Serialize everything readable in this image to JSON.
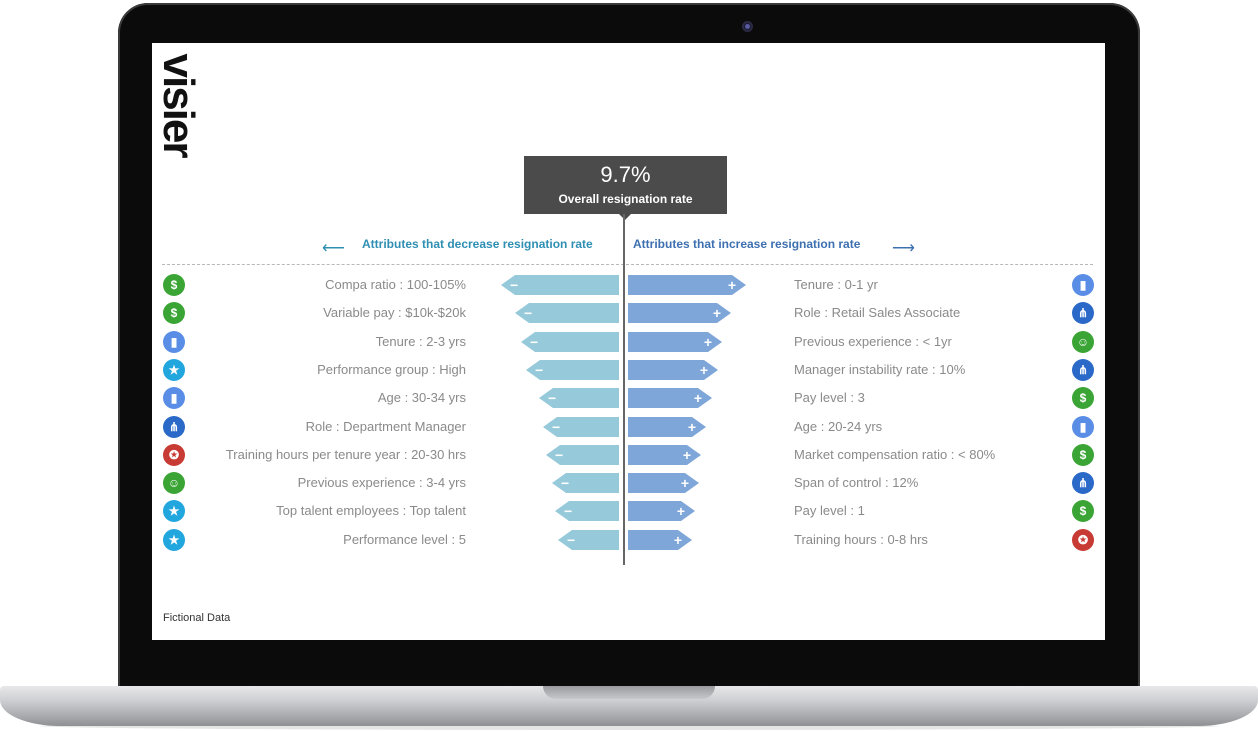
{
  "brand": {
    "logo_text": "visier",
    "registered_mark": "®"
  },
  "summary": {
    "rate_value": "9.7%",
    "rate_label": "Overall resignation rate"
  },
  "headers": {
    "decrease": "Attributes that decrease resignation rate",
    "increase": "Attributes that increase resignation rate",
    "arrow_left": "⟵",
    "arrow_right": "⟶"
  },
  "decrease_rows": [
    {
      "label": "Compa ratio : 100-105%",
      "icon": "dollar-icon",
      "icon_glyph": "$",
      "relative_magnitude": 1.0
    },
    {
      "label": "Variable pay : $10k-$20k",
      "icon": "dollar-icon",
      "icon_glyph": "$",
      "relative_magnitude": 0.88
    },
    {
      "label": "Tenure : 2-3 yrs",
      "icon": "chart-icon",
      "icon_glyph": "▮",
      "relative_magnitude": 0.83
    },
    {
      "label": "Performance group : High",
      "icon": "star-icon",
      "icon_glyph": "★",
      "relative_magnitude": 0.79
    },
    {
      "label": "Age : 30-34 yrs",
      "icon": "chart-icon",
      "icon_glyph": "▮",
      "relative_magnitude": 0.68
    },
    {
      "label": "Role : Department Manager",
      "icon": "network-icon",
      "icon_glyph": "⋔",
      "relative_magnitude": 0.64
    },
    {
      "label": "Training hours per tenure year : 20-30 hrs",
      "icon": "ribbon-icon",
      "icon_glyph": "✪",
      "relative_magnitude": 0.62
    },
    {
      "label": "Previous experience : 3-4 yrs",
      "icon": "person-icon",
      "icon_glyph": "☺",
      "relative_magnitude": 0.57
    },
    {
      "label": "Top talent employees : Top talent",
      "icon": "star-icon",
      "icon_glyph": "★",
      "relative_magnitude": 0.54
    },
    {
      "label": "Performance level : 5",
      "icon": "star-icon",
      "icon_glyph": "★",
      "relative_magnitude": 0.52
    }
  ],
  "increase_rows": [
    {
      "label": "Tenure :  0-1 yr",
      "icon": "chart-icon",
      "icon_glyph": "▮",
      "relative_magnitude": 1.0
    },
    {
      "label": "Role : Retail Sales Associate",
      "icon": "network-icon",
      "icon_glyph": "⋔",
      "relative_magnitude": 0.87
    },
    {
      "label": "Previous experience : < 1yr",
      "icon": "person-icon",
      "icon_glyph": "☺",
      "relative_magnitude": 0.8
    },
    {
      "label": "Manager instability rate : 10%",
      "icon": "network-icon",
      "icon_glyph": "⋔",
      "relative_magnitude": 0.76
    },
    {
      "label": "Pay level : 3",
      "icon": "dollar-icon",
      "icon_glyph": "$",
      "relative_magnitude": 0.71
    },
    {
      "label": "Age : 20-24 yrs",
      "icon": "chart-icon",
      "icon_glyph": "▮",
      "relative_magnitude": 0.66
    },
    {
      "label": "Market compensation ratio : < 80%",
      "icon": "dollar-icon",
      "icon_glyph": "$",
      "relative_magnitude": 0.62
    },
    {
      "label": "Span of control : 12%",
      "icon": "network-icon",
      "icon_glyph": "⋔",
      "relative_magnitude": 0.6
    },
    {
      "label": "Pay level : 1",
      "icon": "dollar-icon",
      "icon_glyph": "$",
      "relative_magnitude": 0.57
    },
    {
      "label": "Training hours : 0-8 hrs",
      "icon": "ribbon-icon",
      "icon_glyph": "✪",
      "relative_magnitude": 0.54
    }
  ],
  "signs": {
    "minus": "−",
    "plus": "+"
  },
  "colors": {
    "decrease_bar": "#96c9da",
    "increase_bar": "#7ea6d8",
    "decrease_header": "#2f8fb3",
    "increase_header": "#3d70b0",
    "rate_box": "#4b4b4b"
  },
  "footer": {
    "note": "Fictional Data"
  }
}
